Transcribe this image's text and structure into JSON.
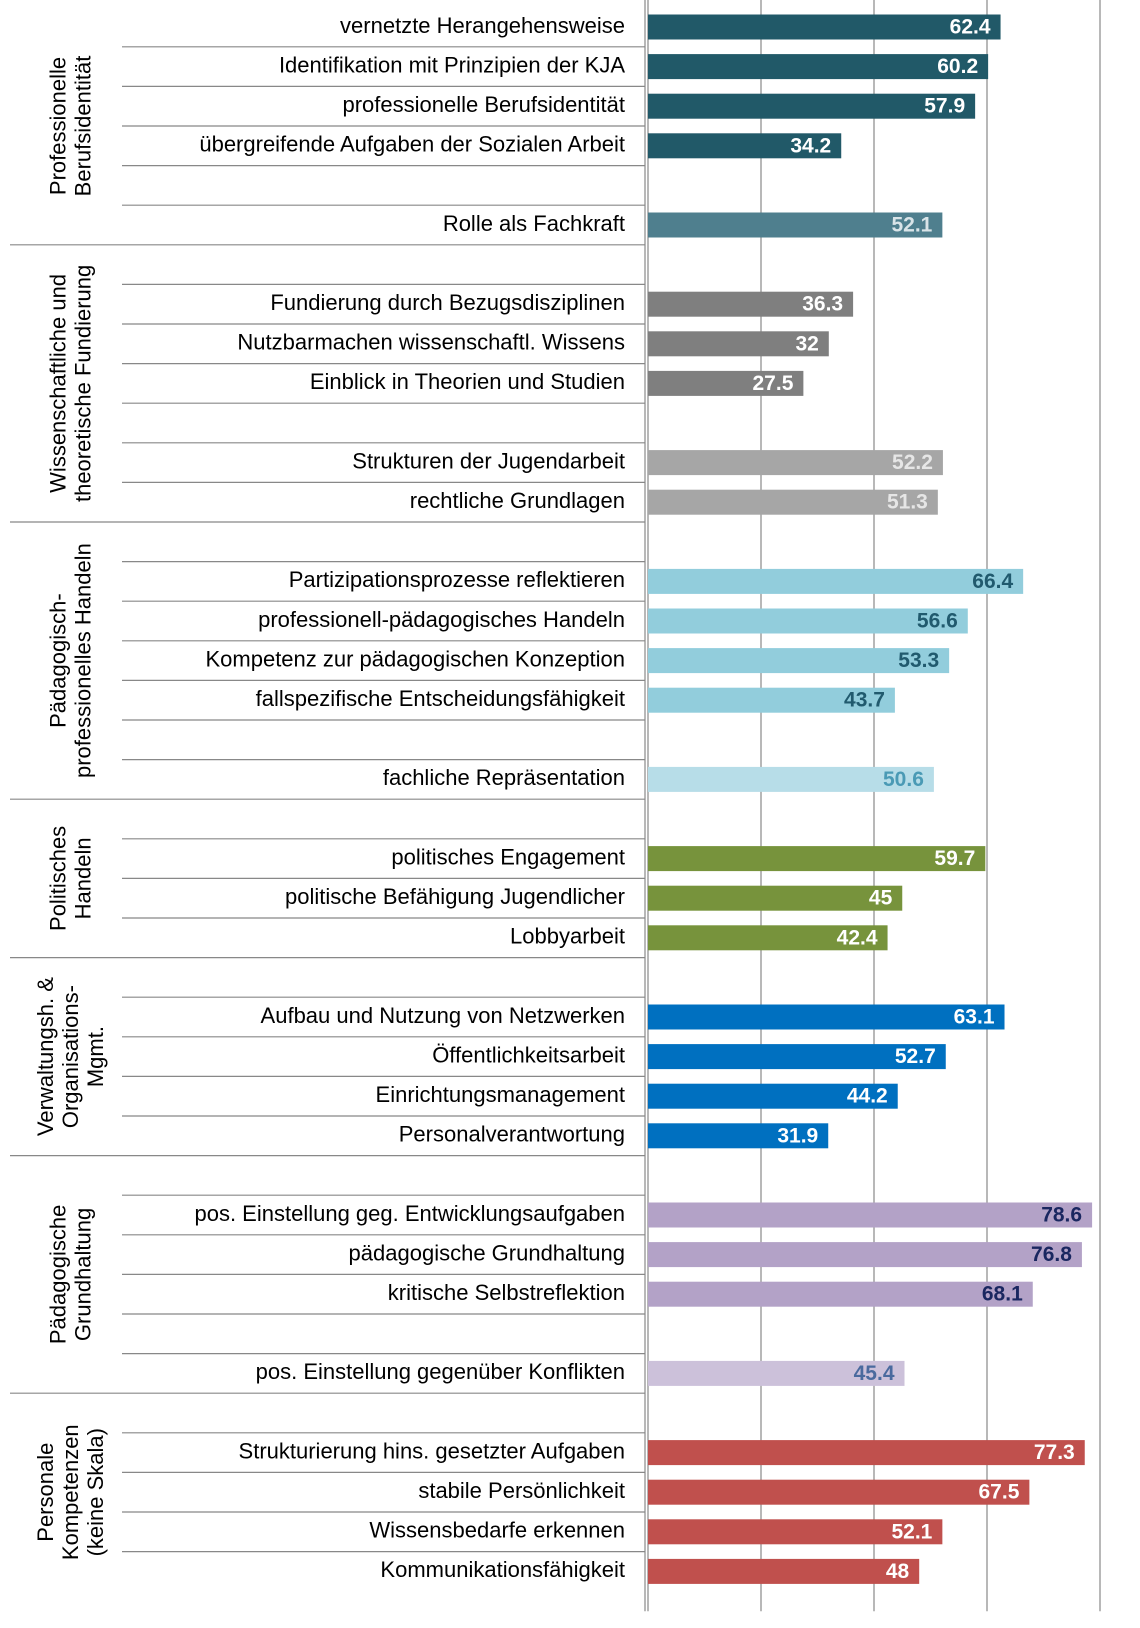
{
  "chart_data": {
    "type": "bar",
    "orientation": "horizontal",
    "categories": [
      "vernetzte Herangehensweise",
      "Identifikation mit Prinzipien der KJA",
      "professionelle Berufsidentität",
      "übergreifende Aufgaben der Sozialen Arbeit",
      null,
      "Rolle als Fachkraft",
      null,
      "Fundierung durch Bezugsdisziplinen",
      "Nutzbarmachen wissenschaftl. Wissens",
      "Einblick in Theorien und Studien",
      null,
      "Strukturen der Jugendarbeit",
      "rechtliche Grundlagen",
      null,
      "Partizipationsprozesse reflektieren",
      "professionell-pädagogisches Handeln",
      "Kompetenz zur pädagogischen Konzeption",
      "fallspezifische Entscheidungsfähigkeit",
      null,
      "fachliche Repräsentation",
      null,
      "politisches Engagement",
      "politische Befähigung Jugendlicher",
      "Lobbyarbeit",
      null,
      "Aufbau und Nutzung von Netzwerken",
      "Öffentlichkeitsarbeit",
      "Einrichtungsmanagement",
      "Personalverantwortung",
      null,
      "pos. Einstellung geg. Entwicklungsaufgaben",
      "pädagogische Grundhaltung",
      "kritische Selbstreflektion",
      null,
      "pos. Einstellung gegenüber Konflikten",
      null,
      "Strukturierung hins. gesetzter Aufgaben",
      "stabile Persönlichkeit",
      "Wissensbedarfe erkennen",
      "Kommunikationsfähigkeit"
    ],
    "values": [
      62.4,
      60.2,
      57.9,
      34.2,
      null,
      52.1,
      null,
      36.3,
      32,
      27.5,
      null,
      52.2,
      51.3,
      null,
      66.4,
      56.6,
      53.3,
      43.7,
      null,
      50.6,
      null,
      59.7,
      45,
      42.4,
      null,
      63.1,
      52.7,
      44.2,
      31.9,
      null,
      78.6,
      76.8,
      68.1,
      null,
      45.4,
      null,
      77.3,
      67.5,
      52.1,
      48
    ],
    "colors": [
      "#215968",
      "#215968",
      "#215968",
      "#215968",
      null,
      "#4f7f8e",
      null,
      "#7f7f7f",
      "#7f7f7f",
      "#7f7f7f",
      null,
      "#a6a6a6",
      "#a6a6a6",
      null,
      "#92cddc",
      "#92cddc",
      "#92cddc",
      "#92cddc",
      null,
      "#b7dde8",
      null,
      "#77933c",
      "#77933c",
      "#77933c",
      null,
      "#0070c0",
      "#0070c0",
      "#0070c0",
      "#0070c0",
      null,
      "#b3a2c7",
      "#b3a2c7",
      "#b3a2c7",
      null,
      "#ccc1da",
      null,
      "#c0504d",
      "#c0504d",
      "#c0504d",
      "#c0504d"
    ],
    "label_colors": [
      "#ffffff",
      "#ffffff",
      "#ffffff",
      "#ffffff",
      null,
      "#d9e4e8",
      null,
      "#ffffff",
      "#ffffff",
      "#ffffff",
      null,
      "#e6e6e6",
      "#e6e6e6",
      null,
      "#215a6e",
      "#215a6e",
      "#215a6e",
      "#215a6e",
      null,
      "#4a9ab5",
      null,
      "#ffffff",
      "#ffffff",
      "#ffffff",
      null,
      "#ffffff",
      "#ffffff",
      "#ffffff",
      "#ffffff",
      null,
      "#1a2760",
      "#1a2760",
      "#1a2760",
      null,
      "#4a6a9e",
      null,
      "#ffffff",
      "#ffffff",
      "#ffffff",
      "#ffffff"
    ],
    "groups": [
      {
        "lines": [
          "Professionelle",
          "Berufsidentität"
        ],
        "start": 0,
        "end": 5
      },
      {
        "lines": [
          "Wissenschaftliche und",
          "theoretische Fundierung"
        ],
        "start": 6,
        "end": 12
      },
      {
        "lines": [
          "Pädagogisch-",
          "professionelles Handeln"
        ],
        "start": 13,
        "end": 19
      },
      {
        "lines": [
          "Politisches",
          "Handeln"
        ],
        "start": 20,
        "end": 23
      },
      {
        "lines": [
          "Verwaltungsh. &",
          "Organisations-",
          "Mgmt."
        ],
        "start": 24,
        "end": 28
      },
      {
        "lines": [
          "Pädagogische",
          "Grundhaltung"
        ],
        "start": 29,
        "end": 34
      },
      {
        "lines": [
          "Personale",
          "Kompetenzen",
          "(keine Skala)"
        ],
        "start": 35,
        "end": 39
      }
    ],
    "xlim": [
      0,
      80
    ],
    "xticks": [
      0,
      20,
      40,
      60,
      80
    ],
    "grid": true
  }
}
